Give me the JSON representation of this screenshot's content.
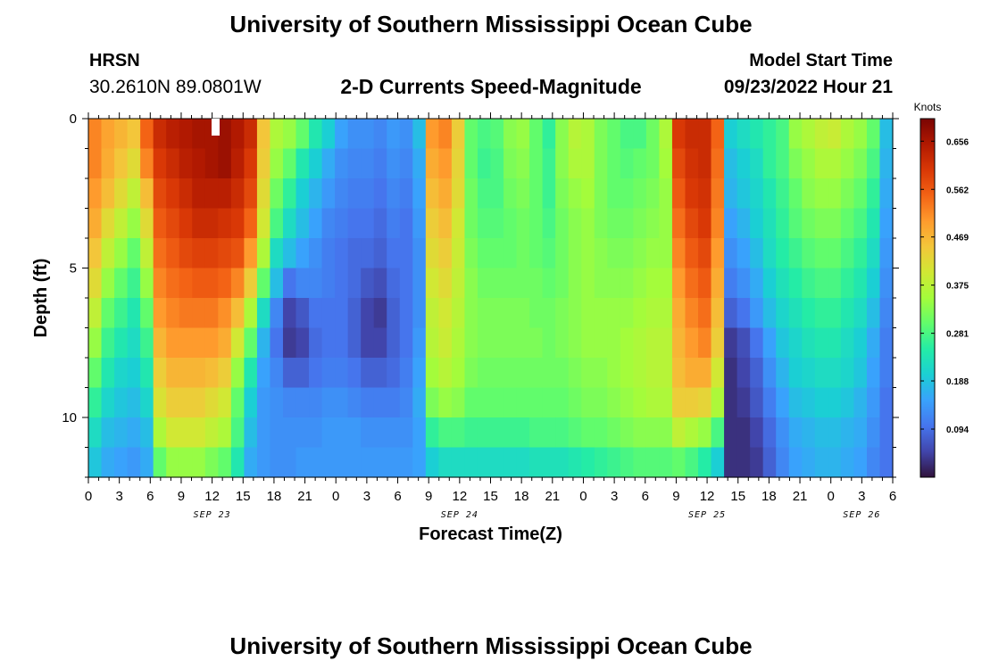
{
  "header": {
    "title": "University of Southern Mississippi Ocean Cube",
    "station": "HRSN",
    "coords": "30.2610N  89.0801W",
    "subtitle": "2-D Currents Speed-Magnitude",
    "model_start_label": "Model Start Time",
    "model_start_value": "09/23/2022 Hour 21"
  },
  "footer": {
    "title": "University of Southern Mississippi Ocean Cube"
  },
  "chart_data": {
    "type": "heatmap",
    "title": "2-D Currents Speed-Magnitude",
    "xlabel": "Forecast Time(Z)",
    "ylabel": "Depth (ft)",
    "x_unit": "forecast hours (0 = SEP 23 00Z)",
    "xlim": [
      0,
      78
    ],
    "ylim": [
      0,
      12
    ],
    "x_ticks": [
      {
        "h": 0,
        "label": "0"
      },
      {
        "h": 3,
        "label": "3"
      },
      {
        "h": 6,
        "label": "6"
      },
      {
        "h": 9,
        "label": "9"
      },
      {
        "h": 12,
        "label": "12"
      },
      {
        "h": 15,
        "label": "15"
      },
      {
        "h": 18,
        "label": "18"
      },
      {
        "h": 21,
        "label": "21"
      },
      {
        "h": 24,
        "label": "0"
      },
      {
        "h": 27,
        "label": "3"
      },
      {
        "h": 30,
        "label": "6"
      },
      {
        "h": 33,
        "label": "9"
      },
      {
        "h": 36,
        "label": "12"
      },
      {
        "h": 39,
        "label": "15"
      },
      {
        "h": 42,
        "label": "18"
      },
      {
        "h": 45,
        "label": "21"
      },
      {
        "h": 48,
        "label": "0"
      },
      {
        "h": 51,
        "label": "3"
      },
      {
        "h": 54,
        "label": "6"
      },
      {
        "h": 57,
        "label": "9"
      },
      {
        "h": 60,
        "label": "12"
      },
      {
        "h": 63,
        "label": "15"
      },
      {
        "h": 66,
        "label": "18"
      },
      {
        "h": 69,
        "label": "21"
      },
      {
        "h": 72,
        "label": "0"
      },
      {
        "h": 75,
        "label": "3"
      },
      {
        "h": 78,
        "label": "6"
      }
    ],
    "date_labels": [
      {
        "h": 12,
        "label": "SEP 23"
      },
      {
        "h": 36,
        "label": "SEP 24"
      },
      {
        "h": 60,
        "label": "SEP 25"
      },
      {
        "h": 75,
        "label": "SEP 26"
      }
    ],
    "y_ticks": [
      {
        "v": 0,
        "label": "0"
      },
      {
        "v": 5,
        "label": "5"
      },
      {
        "v": 10,
        "label": "10"
      }
    ],
    "colorbar": {
      "title": "Knots",
      "range": [
        0.0,
        0.7
      ],
      "ticks": [
        0.094,
        0.188,
        0.281,
        0.375,
        0.469,
        0.562,
        0.656
      ],
      "tick_labels": [
        "0.094",
        "0.188",
        "0.281",
        "0.375",
        "0.469",
        "0.562",
        "0.656"
      ]
    },
    "colors": {
      "stops": [
        "#30123b",
        "#4145ab",
        "#4675ed",
        "#39a2fc",
        "#1bcfd4",
        "#24eca6",
        "#61fc6c",
        "#a4fc3b",
        "#d1e834",
        "#f3c63a",
        "#fe9b2d",
        "#f36315",
        "#d93806",
        "#b11901",
        "#7a0403"
      ]
    },
    "depth_levels": 12,
    "time_columns": 62,
    "values": [
      [
        0.52,
        0.49,
        0.47,
        0.45,
        0.55,
        0.62,
        0.64,
        0.65,
        0.66,
        0.66,
        0.67,
        0.65,
        0.62,
        0.45,
        0.36,
        0.34,
        0.3,
        0.24,
        0.2,
        0.15,
        0.13,
        0.13,
        0.12,
        0.14,
        0.13,
        0.18,
        0.5,
        0.52,
        0.44,
        0.3,
        0.28,
        0.29,
        0.33,
        0.34,
        0.3,
        0.26,
        0.33,
        0.37,
        0.36,
        0.32,
        0.3,
        0.28,
        0.28,
        0.31,
        0.36,
        0.6,
        0.62,
        0.62,
        0.55,
        0.2,
        0.22,
        0.24,
        0.26,
        0.28,
        0.34,
        0.36,
        0.38,
        0.39,
        0.36,
        0.34,
        0.3,
        0.18
      ],
      [
        0.52,
        0.48,
        0.45,
        0.42,
        0.52,
        0.6,
        0.62,
        0.64,
        0.65,
        0.66,
        0.67,
        0.64,
        0.6,
        0.44,
        0.34,
        0.3,
        0.24,
        0.2,
        0.16,
        0.13,
        0.12,
        0.12,
        0.11,
        0.13,
        0.12,
        0.16,
        0.48,
        0.5,
        0.43,
        0.3,
        0.27,
        0.28,
        0.32,
        0.33,
        0.3,
        0.27,
        0.33,
        0.36,
        0.36,
        0.32,
        0.3,
        0.29,
        0.3,
        0.31,
        0.35,
        0.58,
        0.61,
        0.62,
        0.54,
        0.18,
        0.2,
        0.22,
        0.26,
        0.28,
        0.32,
        0.34,
        0.36,
        0.36,
        0.34,
        0.32,
        0.28,
        0.17
      ],
      [
        0.5,
        0.46,
        0.42,
        0.38,
        0.46,
        0.58,
        0.6,
        0.62,
        0.64,
        0.64,
        0.64,
        0.62,
        0.58,
        0.42,
        0.31,
        0.26,
        0.2,
        0.17,
        0.14,
        0.12,
        0.11,
        0.11,
        0.1,
        0.12,
        0.11,
        0.15,
        0.46,
        0.48,
        0.42,
        0.31,
        0.28,
        0.28,
        0.31,
        0.32,
        0.3,
        0.27,
        0.32,
        0.34,
        0.35,
        0.32,
        0.3,
        0.3,
        0.31,
        0.32,
        0.34,
        0.56,
        0.6,
        0.61,
        0.53,
        0.17,
        0.19,
        0.21,
        0.24,
        0.27,
        0.3,
        0.33,
        0.34,
        0.34,
        0.32,
        0.3,
        0.26,
        0.16
      ],
      [
        0.48,
        0.42,
        0.38,
        0.34,
        0.42,
        0.56,
        0.58,
        0.6,
        0.62,
        0.62,
        0.61,
        0.6,
        0.55,
        0.4,
        0.28,
        0.22,
        0.18,
        0.15,
        0.12,
        0.11,
        0.1,
        0.1,
        0.09,
        0.11,
        0.1,
        0.14,
        0.44,
        0.46,
        0.4,
        0.31,
        0.29,
        0.29,
        0.3,
        0.31,
        0.3,
        0.28,
        0.31,
        0.33,
        0.34,
        0.32,
        0.31,
        0.31,
        0.32,
        0.33,
        0.34,
        0.54,
        0.58,
        0.6,
        0.52,
        0.15,
        0.17,
        0.2,
        0.23,
        0.26,
        0.29,
        0.31,
        0.32,
        0.32,
        0.3,
        0.28,
        0.24,
        0.15
      ],
      [
        0.45,
        0.38,
        0.34,
        0.3,
        0.38,
        0.54,
        0.56,
        0.58,
        0.59,
        0.59,
        0.58,
        0.57,
        0.5,
        0.36,
        0.22,
        0.18,
        0.15,
        0.13,
        0.11,
        0.1,
        0.09,
        0.09,
        0.08,
        0.1,
        0.1,
        0.13,
        0.42,
        0.44,
        0.39,
        0.32,
        0.3,
        0.3,
        0.3,
        0.31,
        0.3,
        0.29,
        0.31,
        0.33,
        0.34,
        0.33,
        0.32,
        0.32,
        0.33,
        0.34,
        0.34,
        0.52,
        0.56,
        0.58,
        0.5,
        0.13,
        0.15,
        0.18,
        0.22,
        0.25,
        0.27,
        0.29,
        0.3,
        0.3,
        0.28,
        0.26,
        0.22,
        0.14
      ],
      [
        0.42,
        0.34,
        0.3,
        0.27,
        0.34,
        0.52,
        0.54,
        0.55,
        0.56,
        0.56,
        0.55,
        0.52,
        0.44,
        0.3,
        0.18,
        0.1,
        0.12,
        0.12,
        0.11,
        0.1,
        0.09,
        0.07,
        0.06,
        0.09,
        0.1,
        0.13,
        0.4,
        0.42,
        0.38,
        0.33,
        0.31,
        0.31,
        0.31,
        0.31,
        0.31,
        0.3,
        0.31,
        0.33,
        0.34,
        0.33,
        0.33,
        0.33,
        0.34,
        0.35,
        0.35,
        0.5,
        0.54,
        0.56,
        0.48,
        0.11,
        0.13,
        0.16,
        0.2,
        0.23,
        0.25,
        0.27,
        0.28,
        0.28,
        0.26,
        0.24,
        0.2,
        0.13
      ],
      [
        0.38,
        0.3,
        0.27,
        0.24,
        0.3,
        0.5,
        0.52,
        0.53,
        0.53,
        0.53,
        0.51,
        0.46,
        0.36,
        0.22,
        0.12,
        0.05,
        0.07,
        0.1,
        0.1,
        0.1,
        0.08,
        0.05,
        0.04,
        0.08,
        0.1,
        0.13,
        0.38,
        0.4,
        0.37,
        0.33,
        0.32,
        0.32,
        0.32,
        0.32,
        0.31,
        0.31,
        0.32,
        0.33,
        0.34,
        0.34,
        0.34,
        0.34,
        0.35,
        0.36,
        0.36,
        0.48,
        0.52,
        0.54,
        0.46,
        0.08,
        0.1,
        0.14,
        0.18,
        0.21,
        0.23,
        0.25,
        0.26,
        0.26,
        0.24,
        0.22,
        0.18,
        0.12
      ],
      [
        0.34,
        0.27,
        0.24,
        0.22,
        0.27,
        0.47,
        0.5,
        0.5,
        0.5,
        0.5,
        0.48,
        0.4,
        0.3,
        0.17,
        0.1,
        0.04,
        0.05,
        0.09,
        0.1,
        0.1,
        0.08,
        0.05,
        0.05,
        0.08,
        0.1,
        0.14,
        0.37,
        0.39,
        0.36,
        0.33,
        0.32,
        0.32,
        0.32,
        0.32,
        0.32,
        0.31,
        0.32,
        0.33,
        0.34,
        0.34,
        0.34,
        0.35,
        0.36,
        0.37,
        0.37,
        0.47,
        0.5,
        0.52,
        0.44,
        0.04,
        0.06,
        0.1,
        0.15,
        0.19,
        0.21,
        0.23,
        0.24,
        0.24,
        0.22,
        0.2,
        0.16,
        0.11
      ],
      [
        0.3,
        0.24,
        0.21,
        0.2,
        0.24,
        0.44,
        0.47,
        0.47,
        0.47,
        0.46,
        0.44,
        0.34,
        0.24,
        0.15,
        0.12,
        0.08,
        0.08,
        0.1,
        0.11,
        0.11,
        0.1,
        0.08,
        0.08,
        0.09,
        0.11,
        0.15,
        0.35,
        0.37,
        0.35,
        0.32,
        0.31,
        0.31,
        0.31,
        0.31,
        0.31,
        0.31,
        0.31,
        0.32,
        0.33,
        0.33,
        0.34,
        0.35,
        0.36,
        0.37,
        0.37,
        0.46,
        0.48,
        0.48,
        0.4,
        0.03,
        0.05,
        0.08,
        0.13,
        0.17,
        0.2,
        0.21,
        0.22,
        0.22,
        0.21,
        0.19,
        0.15,
        0.11
      ],
      [
        0.26,
        0.21,
        0.19,
        0.18,
        0.21,
        0.41,
        0.44,
        0.44,
        0.44,
        0.42,
        0.4,
        0.3,
        0.2,
        0.14,
        0.13,
        0.12,
        0.12,
        0.12,
        0.13,
        0.13,
        0.12,
        0.11,
        0.11,
        0.11,
        0.12,
        0.16,
        0.32,
        0.34,
        0.33,
        0.3,
        0.3,
        0.3,
        0.3,
        0.3,
        0.3,
        0.3,
        0.3,
        0.31,
        0.32,
        0.32,
        0.33,
        0.34,
        0.35,
        0.36,
        0.36,
        0.44,
        0.44,
        0.43,
        0.36,
        0.03,
        0.04,
        0.07,
        0.11,
        0.15,
        0.18,
        0.19,
        0.2,
        0.2,
        0.19,
        0.17,
        0.14,
        0.1
      ],
      [
        0.22,
        0.18,
        0.17,
        0.16,
        0.18,
        0.36,
        0.4,
        0.4,
        0.4,
        0.38,
        0.36,
        0.28,
        0.18,
        0.14,
        0.13,
        0.13,
        0.13,
        0.13,
        0.14,
        0.14,
        0.14,
        0.13,
        0.13,
        0.13,
        0.13,
        0.15,
        0.26,
        0.28,
        0.28,
        0.27,
        0.27,
        0.27,
        0.27,
        0.27,
        0.28,
        0.28,
        0.28,
        0.29,
        0.3,
        0.3,
        0.31,
        0.32,
        0.33,
        0.33,
        0.33,
        0.38,
        0.36,
        0.34,
        0.28,
        0.03,
        0.03,
        0.05,
        0.09,
        0.13,
        0.16,
        0.17,
        0.18,
        0.18,
        0.17,
        0.16,
        0.13,
        0.1
      ],
      [
        0.19,
        0.16,
        0.15,
        0.14,
        0.16,
        0.3,
        0.34,
        0.34,
        0.34,
        0.32,
        0.3,
        0.24,
        0.16,
        0.14,
        0.13,
        0.13,
        0.14,
        0.14,
        0.14,
        0.14,
        0.14,
        0.14,
        0.14,
        0.14,
        0.14,
        0.15,
        0.2,
        0.22,
        0.22,
        0.22,
        0.22,
        0.22,
        0.22,
        0.22,
        0.23,
        0.23,
        0.23,
        0.24,
        0.25,
        0.26,
        0.27,
        0.28,
        0.29,
        0.29,
        0.29,
        0.3,
        0.28,
        0.25,
        0.2,
        0.03,
        0.03,
        0.04,
        0.08,
        0.12,
        0.15,
        0.16,
        0.17,
        0.17,
        0.16,
        0.15,
        0.12,
        0.1
      ]
    ]
  }
}
